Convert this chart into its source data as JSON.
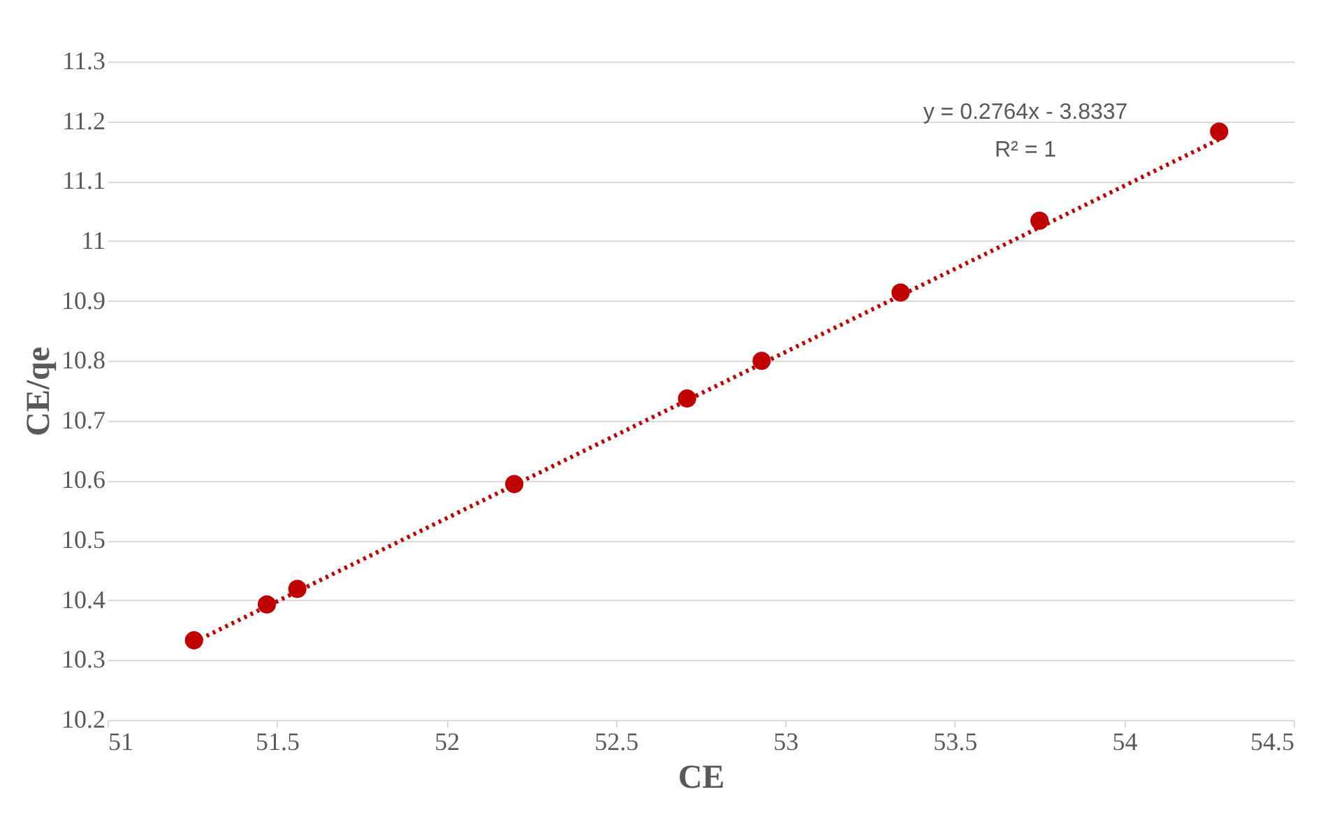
{
  "chart_data": {
    "type": "scatter",
    "xlabel": "CE",
    "ylabel": "CE/qe",
    "xlim": [
      51,
      54.5
    ],
    "xticks": [
      51,
      51.5,
      52,
      52.5,
      53,
      53.5,
      54,
      54.5
    ],
    "ylim": [
      10.2,
      11.3
    ],
    "yticks": [
      10.2,
      10.3,
      10.4,
      10.5,
      10.6,
      10.7,
      10.8,
      10.9,
      11,
      11.1,
      11.2,
      11.3
    ],
    "grid": "y",
    "series": [
      {
        "color": "#c00000",
        "marker": "circle",
        "x": [
          51.255,
          51.47,
          51.56,
          52.2,
          52.71,
          52.93,
          53.34,
          53.75,
          54.28
        ],
        "values": [
          10.333,
          10.393,
          10.419,
          10.594,
          10.737,
          10.8,
          10.914,
          11.034,
          11.183
        ]
      },
      {
        "type": "line",
        "color": "#c00000",
        "marker": "none",
        "line_style": "dotted",
        "x": [
          51.255,
          54.28
        ],
        "values": [
          10.33,
          11.17
        ]
      }
    ],
    "annotations": [
      "y = 0.2764x - 3.8337",
      "R² = 1"
    ]
  }
}
